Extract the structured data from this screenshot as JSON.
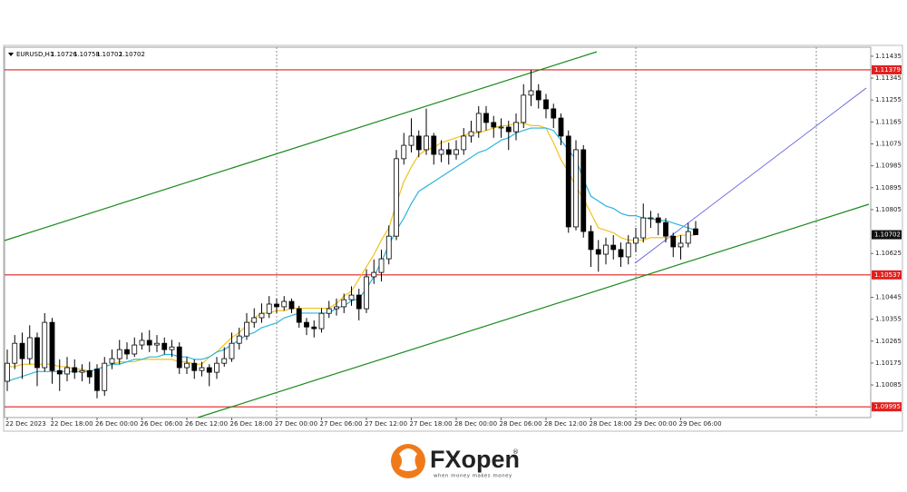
{
  "chart_data": {
    "type": "candlestick",
    "symbol": "EURUSD,H1",
    "categories": [
      "22 Dec 2023",
      null,
      null,
      null,
      null,
      null,
      "22 Dec 18:00",
      null,
      null,
      null,
      null,
      null,
      "26 Dec 00:00",
      null,
      null,
      null,
      null,
      null,
      "26 Dec 06:00",
      null,
      null,
      null,
      null,
      null,
      "26 Dec 12:00",
      null,
      null,
      null,
      null,
      null,
      "26 Dec 18:00",
      null,
      null,
      null,
      null,
      null,
      "27 Dec 00:00",
      null,
      null,
      null,
      null,
      null,
      "27 Dec 06:00",
      null,
      null,
      null,
      null,
      null,
      "27 Dec 12:00",
      null,
      null,
      null,
      null,
      null,
      "27 Dec 18:00",
      null,
      null,
      null,
      null,
      null,
      "28 Dec 00:00",
      null,
      null,
      null,
      null,
      null,
      "28 Dec 06:00",
      null,
      null,
      null,
      null,
      null,
      "28 Dec 12:00",
      null,
      null,
      null,
      null,
      null,
      "28 Dec 18:00",
      null,
      null,
      null,
      null,
      null,
      "29 Dec 00:00",
      null,
      null,
      null,
      null,
      null,
      "29 Dec 06:00",
      null,
      null
    ],
    "ohlc": [
      [
        1.101,
        1.1023,
        1.1006,
        1.10174
      ],
      [
        1.10174,
        1.1029,
        1.1015,
        1.10256
      ],
      [
        1.10256,
        1.103,
        1.1011,
        1.10193
      ],
      [
        1.10193,
        1.1033,
        1.1017,
        1.10279
      ],
      [
        1.10279,
        1.103,
        1.1008,
        1.10156
      ],
      [
        1.10156,
        1.1038,
        1.1014,
        1.10342
      ],
      [
        1.10342,
        1.1036,
        1.1009,
        1.10144
      ],
      [
        1.10144,
        1.1019,
        1.1006,
        1.1013
      ],
      [
        1.1013,
        1.102,
        1.101,
        1.10156
      ],
      [
        1.10156,
        1.1019,
        1.1011,
        1.10137
      ],
      [
        1.10137,
        1.1017,
        1.101,
        1.10144
      ],
      [
        1.10144,
        1.1018,
        1.1009,
        1.10118
      ],
      [
        1.1015,
        1.1017,
        1.1003,
        1.10062
      ],
      [
        1.10062,
        1.102,
        1.1004,
        1.10174
      ],
      [
        1.10174,
        1.1023,
        1.1015,
        1.10193
      ],
      [
        1.10193,
        1.1027,
        1.1017,
        1.1023
      ],
      [
        1.1023,
        1.1026,
        1.1019,
        1.10212
      ],
      [
        1.10212,
        1.1028,
        1.102,
        1.10249
      ],
      [
        1.10249,
        1.103,
        1.1023,
        1.10268
      ],
      [
        1.10268,
        1.1031,
        1.1022,
        1.10249
      ],
      [
        1.10249,
        1.1029,
        1.1022,
        1.10256
      ],
      [
        1.10256,
        1.1028,
        1.1021,
        1.1023
      ],
      [
        1.1023,
        1.1027,
        1.102,
        1.10241
      ],
      [
        1.10241,
        1.1026,
        1.1013,
        1.10156
      ],
      [
        1.10156,
        1.102,
        1.1013,
        1.10174
      ],
      [
        1.10174,
        1.1019,
        1.1011,
        1.10144
      ],
      [
        1.10144,
        1.1018,
        1.1012,
        1.10156
      ],
      [
        1.10156,
        1.1017,
        1.1008,
        1.10137
      ],
      [
        1.10137,
        1.102,
        1.1011,
        1.10174
      ],
      [
        1.10174,
        1.1024,
        1.1016,
        1.10193
      ],
      [
        1.10193,
        1.103,
        1.1018,
        1.10256
      ],
      [
        1.10256,
        1.1032,
        1.1023,
        1.10286
      ],
      [
        1.10286,
        1.1038,
        1.1027,
        1.10342
      ],
      [
        1.10342,
        1.104,
        1.1032,
        1.10361
      ],
      [
        1.10361,
        1.1042,
        1.1034,
        1.10379
      ],
      [
        1.10379,
        1.1045,
        1.1036,
        1.10417
      ],
      [
        1.10417,
        1.1044,
        1.1038,
        1.10406
      ],
      [
        1.10406,
        1.1045,
        1.1039,
        1.10428
      ],
      [
        1.10428,
        1.1044,
        1.1038,
        1.10398
      ],
      [
        1.10398,
        1.1041,
        1.1032,
        1.10342
      ],
      [
        1.10342,
        1.1036,
        1.1029,
        1.10323
      ],
      [
        1.10323,
        1.1035,
        1.1028,
        1.10316
      ],
      [
        1.10316,
        1.104,
        1.103,
        1.10379
      ],
      [
        1.10379,
        1.1043,
        1.1036,
        1.10398
      ],
      [
        1.10398,
        1.1044,
        1.1037,
        1.10406
      ],
      [
        1.10406,
        1.1046,
        1.1038,
        1.10435
      ],
      [
        1.10435,
        1.1049,
        1.1041,
        1.10454
      ],
      [
        1.10454,
        1.1048,
        1.1035,
        1.10398
      ],
      [
        1.10398,
        1.1056,
        1.1038,
        1.10529
      ],
      [
        1.10529,
        1.106,
        1.105,
        1.10547
      ],
      [
        1.10547,
        1.1064,
        1.1051,
        1.10603
      ],
      [
        1.10603,
        1.1074,
        1.1058,
        1.10696
      ],
      [
        1.10696,
        1.1105,
        1.1068,
        1.11014
      ],
      [
        1.11014,
        1.1112,
        1.1099,
        1.11069
      ],
      [
        1.11069,
        1.1118,
        1.1104,
        1.11107
      ],
      [
        1.11107,
        1.1113,
        1.1102,
        1.11051
      ],
      [
        1.11051,
        1.1122,
        1.1103,
        1.11107
      ],
      [
        1.11107,
        1.1112,
        1.1099,
        1.11032
      ],
      [
        1.11032,
        1.1109,
        1.11,
        1.11051
      ],
      [
        1.11051,
        1.1108,
        1.1099,
        1.11032
      ],
      [
        1.11032,
        1.1109,
        1.1101,
        1.11051
      ],
      [
        1.11051,
        1.1114,
        1.1103,
        1.11107
      ],
      [
        1.11107,
        1.1117,
        1.1108,
        1.11125
      ],
      [
        1.11125,
        1.1123,
        1.111,
        1.112
      ],
      [
        1.112,
        1.1123,
        1.1113,
        1.11163
      ],
      [
        1.11163,
        1.1119,
        1.111,
        1.11144
      ],
      [
        1.11144,
        1.1118,
        1.111,
        1.11144
      ],
      [
        1.11144,
        1.1117,
        1.1105,
        1.11125
      ],
      [
        1.11125,
        1.112,
        1.1109,
        1.11163
      ],
      [
        1.11163,
        1.1132,
        1.1114,
        1.11275
      ],
      [
        1.11275,
        1.11379,
        1.1123,
        1.11293
      ],
      [
        1.11293,
        1.1132,
        1.1122,
        1.11256
      ],
      [
        1.11256,
        1.1128,
        1.1118,
        1.11219
      ],
      [
        1.11219,
        1.1124,
        1.1114,
        1.11181
      ],
      [
        1.11181,
        1.112,
        1.1107,
        1.11107
      ],
      [
        1.11107,
        1.1113,
        1.1071,
        1.10734
      ],
      [
        1.10734,
        1.1109,
        1.1072,
        1.11051
      ],
      [
        1.11051,
        1.1107,
        1.1069,
        1.10715
      ],
      [
        1.10715,
        1.1074,
        1.1057,
        1.10641
      ],
      [
        1.10641,
        1.1068,
        1.1055,
        1.10622
      ],
      [
        1.10622,
        1.1069,
        1.1058,
        1.10659
      ],
      [
        1.10659,
        1.107,
        1.106,
        1.10641
      ],
      [
        1.10641,
        1.1067,
        1.1057,
        1.10611
      ],
      [
        1.10611,
        1.107,
        1.1058,
        1.10667
      ],
      [
        1.10667,
        1.1073,
        1.1063,
        1.10689
      ],
      [
        1.10689,
        1.1083,
        1.1067,
        1.10771
      ],
      [
        1.10771,
        1.108,
        1.1073,
        1.10771
      ],
      [
        1.10771,
        1.1079,
        1.107,
        1.10752
      ],
      [
        1.10752,
        1.1077,
        1.1067,
        1.10696
      ],
      [
        1.10696,
        1.1071,
        1.1061,
        1.10652
      ],
      [
        1.10652,
        1.107,
        1.106,
        1.10667
      ],
      [
        1.10667,
        1.1075,
        1.1065,
        1.10715
      ],
      [
        1.10726,
        1.10758,
        1.10702,
        1.10702
      ]
    ],
    "moving_averages": [
      {
        "color": "#f2c21b",
        "values": [
          1.1016,
          1.1016,
          1.1017,
          1.1017,
          1.1017,
          1.1017,
          1.1017,
          1.1016,
          1.1016,
          1.1015,
          1.1015,
          1.1014,
          1.1015,
          1.1016,
          1.1017,
          1.1018,
          1.1018,
          1.1018,
          1.1019,
          1.1019,
          1.1019,
          1.1019,
          1.1019,
          1.1018,
          1.1018,
          1.1017,
          1.1017,
          1.102,
          1.1022,
          1.1025,
          1.1028,
          1.103,
          1.1033,
          1.1036,
          1.1038,
          1.1038,
          1.1039,
          1.1039,
          1.104,
          1.104,
          1.104,
          1.104,
          1.104,
          1.104,
          1.1042,
          1.1045,
          1.1047,
          1.1052,
          1.1057,
          1.1062,
          1.1068,
          1.1073,
          1.1083,
          1.1092,
          1.1098,
          1.1103,
          1.1105,
          1.1106,
          1.1108,
          1.1109,
          1.111,
          1.1111,
          1.1112,
          1.1112,
          1.1113,
          1.1114,
          1.1115,
          1.1115,
          1.1116,
          1.1116,
          1.1115,
          1.1115,
          1.1114,
          1.1108,
          1.1101,
          1.1096,
          1.109,
          1.1085,
          1.1079,
          1.1073,
          1.1072,
          1.1071,
          1.1069,
          1.1068,
          1.1068,
          1.1068,
          1.1069,
          1.1069,
          1.1069,
          1.1069,
          1.107,
          1.107,
          1.107
        ]
      },
      {
        "color": "#2cb5dc",
        "values": [
          1.101,
          1.1011,
          1.1012,
          1.1013,
          1.1014,
          1.1014,
          1.1014,
          1.1014,
          1.1014,
          1.1014,
          1.1014,
          1.1014,
          1.1015,
          1.1016,
          1.1017,
          1.1017,
          1.1018,
          1.1019,
          1.1019,
          1.102,
          1.102,
          1.1021,
          1.1021,
          1.102,
          1.102,
          1.1019,
          1.1019,
          1.102,
          1.1022,
          1.1023,
          1.1025,
          1.1027,
          1.1029,
          1.103,
          1.1032,
          1.1033,
          1.1034,
          1.1036,
          1.1037,
          1.1038,
          1.1038,
          1.1038,
          1.1038,
          1.1038,
          1.104,
          1.1041,
          1.1043,
          1.1044,
          1.1048,
          1.1053,
          1.1059,
          1.1066,
          1.1072,
          1.1077,
          1.1083,
          1.1088,
          1.109,
          1.1092,
          1.1094,
          1.1096,
          1.1098,
          1.11,
          1.1102,
          1.1104,
          1.1105,
          1.1107,
          1.1109,
          1.111,
          1.1112,
          1.1113,
          1.1114,
          1.1114,
          1.1114,
          1.1113,
          1.1109,
          1.1105,
          1.1101,
          1.1093,
          1.1086,
          1.1084,
          1.1082,
          1.1081,
          1.1079,
          1.1078,
          1.1078,
          1.1077,
          1.1077,
          1.1076,
          1.1076,
          1.1075,
          1.1074,
          1.1073,
          1.1072
        ]
      }
    ],
    "levels": [
      1.11379,
      1.10537,
      1.09995
    ],
    "level_color": "#e02020",
    "ylim": [
      1.09951,
      1.11472
    ],
    "yticks": [
      1.11435,
      1.11345,
      1.11255,
      1.11165,
      1.11075,
      1.10985,
      1.10895,
      1.10805,
      1.10625,
      1.10445,
      1.10355,
      1.10265,
      1.10175,
      1.10085
    ],
    "bull_color": "#ffffff",
    "bear_color": "#000000"
  },
  "logo": {
    "name": "FXopen",
    "registered": "®",
    "tagline": "when money makes money"
  }
}
